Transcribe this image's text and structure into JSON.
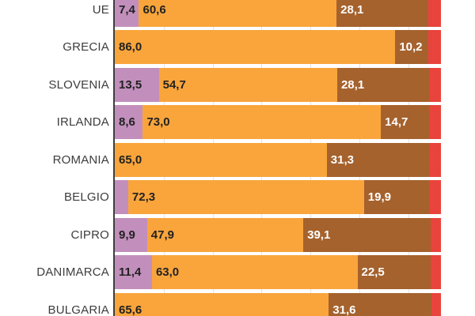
{
  "chart_data": {
    "type": "bar",
    "orientation": "horizontal",
    "stacked": true,
    "unit": "%",
    "title": "",
    "xlabel": "",
    "ylabel": "",
    "xlim": [
      0,
      100
    ],
    "legend": "none-visible",
    "grid": "vertical-gridlines-visible-in-row-gaps",
    "categories": [
      "UE",
      "GRECIA",
      "SLOVENIA",
      "IRLANDA",
      "ROMANIA",
      "BELGIO",
      "CIPRO",
      "DANIMARCA",
      "BULGARIA"
    ],
    "series": [
      {
        "name": "segment-purple",
        "color": "#C28FBC",
        "label_color": "#222222",
        "values": [
          7.4,
          0,
          13.5,
          8.6,
          0,
          4.1,
          9.9,
          11.4,
          0
        ]
      },
      {
        "name": "segment-orange",
        "color": "#F9A53C",
        "label_color": "#222222",
        "values": [
          60.6,
          86.0,
          54.7,
          73.0,
          65.0,
          72.3,
          47.9,
          63.0,
          65.6
        ]
      },
      {
        "name": "segment-brown",
        "color": "#A5622D",
        "label_color": "#FFFFFF",
        "values": [
          28.1,
          10.2,
          28.1,
          14.7,
          31.3,
          19.9,
          39.1,
          22.5,
          31.6
        ]
      },
      {
        "name": "segment-red",
        "color": "#E8433C",
        "label_color": "#FFFFFF",
        "values": [
          3.9,
          3.8,
          3.7,
          3.7,
          3.7,
          3.7,
          3.1,
          3.1,
          2.8
        ]
      }
    ],
    "value_labels": [
      [
        "7,4",
        "60,6",
        "28,1",
        ""
      ],
      [
        "",
        "86,0",
        "10,2",
        ""
      ],
      [
        "13,5",
        "54,7",
        "28,1",
        ""
      ],
      [
        "8,6",
        "73,0",
        "14,7",
        ""
      ],
      [
        "",
        "65,0",
        "31,3",
        ""
      ],
      [
        "",
        "72,3",
        "19,9",
        ""
      ],
      [
        "9,9",
        "47,9",
        "39,1",
        ""
      ],
      [
        "11,4",
        "63,0",
        "22,5",
        ""
      ],
      [
        "",
        "65,6",
        "31,6",
        ""
      ]
    ],
    "axis": {
      "gridlines_pct": [
        15,
        30,
        45,
        60,
        75,
        90
      ],
      "gridline_color": "#E3E3E3",
      "axis_line_color": "#3E3E3E"
    },
    "category_label_color": "#3D3D3D"
  },
  "layout_note": "top row (UE) and bottom row (BULGARIA) are partially cropped by the viewport"
}
